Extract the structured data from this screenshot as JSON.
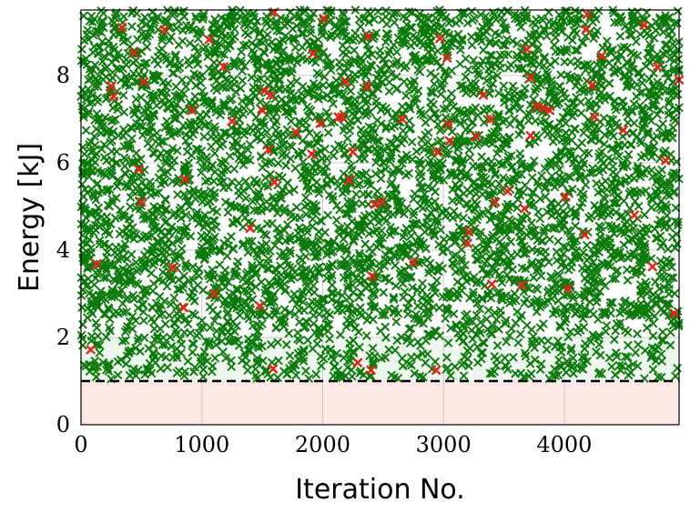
{
  "chart_data": {
    "type": "scatter",
    "title": "",
    "xlabel": "Iteration No.",
    "ylabel": "Energy [kJ]",
    "xlim": [
      0,
      4950
    ],
    "ylim": [
      0,
      9.5
    ],
    "xticks": [
      0,
      1000,
      2000,
      3000,
      4000
    ],
    "xtick_labels": [
      "0",
      "1000",
      "2000",
      "3000",
      "4000"
    ],
    "yticks": [
      0,
      2,
      4,
      6,
      8
    ],
    "ytick_labels": [
      "0",
      "2",
      "4",
      "6",
      "8"
    ],
    "grid": true,
    "legend": "none",
    "marker": "x",
    "threshold": {
      "y": 1.0,
      "style": "dashed",
      "color": "#000000"
    },
    "regions": [
      {
        "y_from": 0,
        "y_to": 1.0,
        "color": "#fde8e8"
      },
      {
        "y_from": 1.0,
        "y_to": 2.0,
        "color": "#eef7ee"
      }
    ],
    "series": [
      {
        "color": "#0a7a0a",
        "count": 5000,
        "description": "dense uniform scatter across 0-4950 with most points between 2 and 9.5 kJ and a sparser band between 1 and 2.5 kJ"
      },
      {
        "color": "#e8221b",
        "points": [
          [
            80,
            1.72
          ],
          [
            130,
            3.68
          ],
          [
            250,
            7.75
          ],
          [
            270,
            7.52
          ],
          [
            340,
            9.1
          ],
          [
            440,
            8.52
          ],
          [
            480,
            5.85
          ],
          [
            500,
            5.1
          ],
          [
            520,
            7.85
          ],
          [
            690,
            9.05
          ],
          [
            760,
            3.6
          ],
          [
            850,
            2.68
          ],
          [
            860,
            5.62
          ],
          [
            920,
            7.2
          ],
          [
            1060,
            8.82
          ],
          [
            1100,
            3.0
          ],
          [
            1180,
            8.2
          ],
          [
            1250,
            6.95
          ],
          [
            1400,
            4.5
          ],
          [
            1480,
            2.72
          ],
          [
            1500,
            7.2
          ],
          [
            1520,
            7.65
          ],
          [
            1550,
            6.3
          ],
          [
            1570,
            7.55
          ],
          [
            1590,
            1.28
          ],
          [
            1600,
            5.55
          ],
          [
            1600,
            9.45
          ],
          [
            1780,
            6.7
          ],
          [
            1910,
            6.2
          ],
          [
            1920,
            8.5
          ],
          [
            1980,
            6.9
          ],
          [
            2010,
            9.3
          ],
          [
            2130,
            7.05
          ],
          [
            2160,
            7.05
          ],
          [
            2190,
            7.85
          ],
          [
            2220,
            5.6
          ],
          [
            2250,
            6.25
          ],
          [
            2290,
            1.42
          ],
          [
            2370,
            7.75
          ],
          [
            2380,
            8.9
          ],
          [
            2400,
            1.25
          ],
          [
            2410,
            3.4
          ],
          [
            2430,
            5.05
          ],
          [
            2490,
            5.1
          ],
          [
            2660,
            7.0
          ],
          [
            2750,
            3.72
          ],
          [
            2940,
            1.25
          ],
          [
            2950,
            6.25
          ],
          [
            2970,
            8.85
          ],
          [
            3030,
            8.4
          ],
          [
            3040,
            6.88
          ],
          [
            3050,
            6.5
          ],
          [
            3200,
            4.15
          ],
          [
            3210,
            4.42
          ],
          [
            3270,
            6.6
          ],
          [
            3330,
            7.55
          ],
          [
            3390,
            7.0
          ],
          [
            3400,
            3.22
          ],
          [
            3430,
            5.1
          ],
          [
            3530,
            5.35
          ],
          [
            3650,
            3.2
          ],
          [
            3670,
            4.95
          ],
          [
            3690,
            8.6
          ],
          [
            3720,
            6.62
          ],
          [
            3720,
            7.95
          ],
          [
            3770,
            7.3
          ],
          [
            3830,
            7.25
          ],
          [
            3880,
            7.2
          ],
          [
            4010,
            5.22
          ],
          [
            4030,
            3.12
          ],
          [
            4170,
            4.35
          ],
          [
            4180,
            9.05
          ],
          [
            4190,
            9.4
          ],
          [
            4230,
            7.78
          ],
          [
            4250,
            7.05
          ],
          [
            4310,
            8.45
          ],
          [
            4490,
            6.75
          ],
          [
            4580,
            4.8
          ],
          [
            4660,
            9.15
          ],
          [
            4730,
            3.62
          ],
          [
            4770,
            8.2
          ],
          [
            4840,
            6.05
          ],
          [
            4910,
            2.55
          ],
          [
            4950,
            7.9
          ]
        ]
      }
    ]
  }
}
